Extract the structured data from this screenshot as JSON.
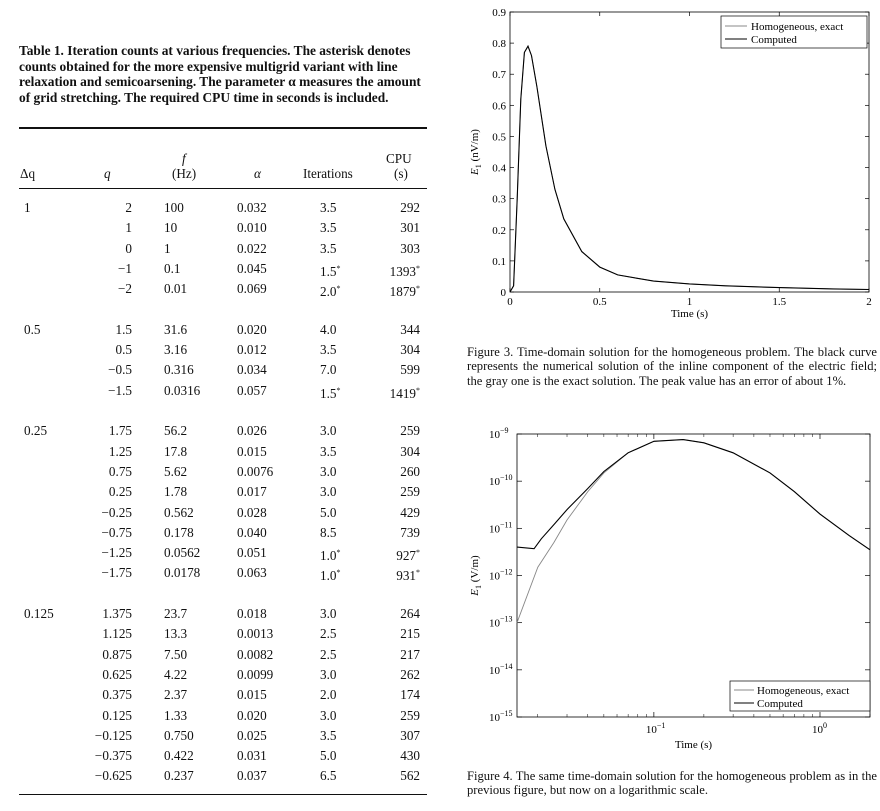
{
  "table": {
    "caption": "Table 1. Iteration counts at various frequencies. The asterisk denotes counts obtained for the more expensive multigrid variant with line relaxation and semicoarsening. The parameter α measures the amount of grid stretching. The required CPU time in seconds is included.",
    "headers": {
      "dq": "Δq",
      "q": "q",
      "f_top": "f",
      "f_unit": "(Hz)",
      "alpha": "α",
      "iterations": "Iterations",
      "cpu_top": "CPU",
      "cpu_unit": "(s)"
    },
    "groups": [
      {
        "dq": "1",
        "rows": [
          {
            "q": "2",
            "f": "100",
            "alpha": "0.032",
            "it": "3.5",
            "star": "",
            "cpu": "292",
            "cstar": ""
          },
          {
            "q": "1",
            "f": "10",
            "alpha": "0.010",
            "it": "3.5",
            "star": "",
            "cpu": "301",
            "cstar": ""
          },
          {
            "q": "0",
            "f": "1",
            "alpha": "0.022",
            "it": "3.5",
            "star": "",
            "cpu": "303",
            "cstar": ""
          },
          {
            "q": "−1",
            "f": "0.1",
            "alpha": "0.045",
            "it": "1.5",
            "star": "*",
            "cpu": "1393",
            "cstar": "*"
          },
          {
            "q": "−2",
            "f": "0.01",
            "alpha": "0.069",
            "it": "2.0",
            "star": "*",
            "cpu": "1879",
            "cstar": "*"
          }
        ]
      },
      {
        "dq": "0.5",
        "rows": [
          {
            "q": "1.5",
            "f": "31.6",
            "alpha": "0.020",
            "it": "4.0",
            "star": "",
            "cpu": "344",
            "cstar": ""
          },
          {
            "q": "0.5",
            "f": "3.16",
            "alpha": "0.012",
            "it": "3.5",
            "star": "",
            "cpu": "304",
            "cstar": ""
          },
          {
            "q": "−0.5",
            "f": "0.316",
            "alpha": "0.034",
            "it": "7.0",
            "star": "",
            "cpu": "599",
            "cstar": ""
          },
          {
            "q": "−1.5",
            "f": "0.0316",
            "alpha": "0.057",
            "it": "1.5",
            "star": "*",
            "cpu": "1419",
            "cstar": "*"
          }
        ]
      },
      {
        "dq": "0.25",
        "rows": [
          {
            "q": "1.75",
            "f": "56.2",
            "alpha": "0.026",
            "it": "3.0",
            "star": "",
            "cpu": "259",
            "cstar": ""
          },
          {
            "q": "1.25",
            "f": "17.8",
            "alpha": "0.015",
            "it": "3.5",
            "star": "",
            "cpu": "304",
            "cstar": ""
          },
          {
            "q": "0.75",
            "f": "5.62",
            "alpha": "0.0076",
            "it": "3.0",
            "star": "",
            "cpu": "260",
            "cstar": ""
          },
          {
            "q": "0.25",
            "f": "1.78",
            "alpha": "0.017",
            "it": "3.0",
            "star": "",
            "cpu": "259",
            "cstar": ""
          },
          {
            "q": "−0.25",
            "f": "0.562",
            "alpha": "0.028",
            "it": "5.0",
            "star": "",
            "cpu": "429",
            "cstar": ""
          },
          {
            "q": "−0.75",
            "f": "0.178",
            "alpha": "0.040",
            "it": "8.5",
            "star": "",
            "cpu": "739",
            "cstar": ""
          },
          {
            "q": "−1.25",
            "f": "0.0562",
            "alpha": "0.051",
            "it": "1.0",
            "star": "*",
            "cpu": "927",
            "cstar": "*"
          },
          {
            "q": "−1.75",
            "f": "0.0178",
            "alpha": "0.063",
            "it": "1.0",
            "star": "*",
            "cpu": "931",
            "cstar": "*"
          }
        ]
      },
      {
        "dq": "0.125",
        "rows": [
          {
            "q": "1.375",
            "f": "23.7",
            "alpha": "0.018",
            "it": "3.0",
            "star": "",
            "cpu": "264",
            "cstar": ""
          },
          {
            "q": "1.125",
            "f": "13.3",
            "alpha": "0.0013",
            "it": "2.5",
            "star": "",
            "cpu": "215",
            "cstar": ""
          },
          {
            "q": "0.875",
            "f": "7.50",
            "alpha": "0.0082",
            "it": "2.5",
            "star": "",
            "cpu": "217",
            "cstar": ""
          },
          {
            "q": "0.625",
            "f": "4.22",
            "alpha": "0.0099",
            "it": "3.0",
            "star": "",
            "cpu": "262",
            "cstar": ""
          },
          {
            "q": "0.375",
            "f": "2.37",
            "alpha": "0.015",
            "it": "2.0",
            "star": "",
            "cpu": "174",
            "cstar": ""
          },
          {
            "q": "0.125",
            "f": "1.33",
            "alpha": "0.020",
            "it": "3.0",
            "star": "",
            "cpu": "259",
            "cstar": ""
          },
          {
            "q": "−0.125",
            "f": "0.750",
            "alpha": "0.025",
            "it": "3.5",
            "star": "",
            "cpu": "307",
            "cstar": ""
          },
          {
            "q": "−0.375",
            "f": "0.422",
            "alpha": "0.031",
            "it": "5.0",
            "star": "",
            "cpu": "430",
            "cstar": ""
          },
          {
            "q": "−0.625",
            "f": "0.237",
            "alpha": "0.037",
            "it": "6.5",
            "star": "",
            "cpu": "562",
            "cstar": ""
          }
        ]
      }
    ]
  },
  "figure3": {
    "caption": "Figure 3. Time-domain solution for the homogeneous problem. The black curve represents the numerical solution of the inline component of the electric field; the gray one is the exact solution. The peak value has an error of about 1%."
  },
  "figure4": {
    "caption": "Figure 4. The same time-domain solution for the homogeneous problem as in the previous figure, but now on a logarithmic scale."
  },
  "chart_data": [
    {
      "type": "line",
      "xlabel": "Time (s)",
      "ylabel": "E1 (nV/m)",
      "ylabel_main": "E",
      "ylabel_sub": "1",
      "ylabel_unit": " (nV/m)",
      "xlim": [
        0,
        2
      ],
      "ylim": [
        0,
        0.9
      ],
      "xticks": [
        0,
        0.5,
        1,
        1.5,
        2
      ],
      "xtick_labels": [
        "0",
        "0.5",
        "1",
        "1.5",
        "2"
      ],
      "yticks": [
        0,
        0.1,
        0.2,
        0.3,
        0.4,
        0.5,
        0.6,
        0.7,
        0.8,
        0.9
      ],
      "ytick_labels": [
        "0",
        "0.1",
        "0.2",
        "0.3",
        "0.4",
        "0.5",
        "0.6",
        "0.7",
        "0.8",
        "0.9"
      ],
      "grid": false,
      "legend_position": "top-right",
      "series": [
        {
          "name": "Homogeneous, exact",
          "color": "#888888",
          "x": [
            0,
            0.02,
            0.04,
            0.06,
            0.08,
            0.1,
            0.12,
            0.15,
            0.2,
            0.25,
            0.3,
            0.4,
            0.5,
            0.6,
            0.8,
            1.0,
            1.2,
            1.5,
            1.8,
            2.0
          ],
          "y": [
            0,
            0.02,
            0.3,
            0.62,
            0.77,
            0.79,
            0.76,
            0.66,
            0.47,
            0.33,
            0.235,
            0.13,
            0.08,
            0.055,
            0.035,
            0.026,
            0.02,
            0.014,
            0.01,
            0.008
          ]
        },
        {
          "name": "Computed",
          "color": "#000000",
          "x": [
            0,
            0.02,
            0.04,
            0.06,
            0.08,
            0.1,
            0.12,
            0.15,
            0.2,
            0.25,
            0.3,
            0.4,
            0.5,
            0.6,
            0.8,
            1.0,
            1.2,
            1.5,
            1.8,
            2.0
          ],
          "y": [
            0,
            0.02,
            0.3,
            0.62,
            0.77,
            0.79,
            0.76,
            0.66,
            0.47,
            0.33,
            0.235,
            0.13,
            0.08,
            0.055,
            0.035,
            0.026,
            0.02,
            0.014,
            0.01,
            0.008
          ]
        }
      ]
    },
    {
      "type": "line",
      "xlabel": "Time (s)",
      "ylabel": "E1 (V/m)",
      "ylabel_main": "E",
      "ylabel_sub": "1",
      "ylabel_unit": " (V/m)",
      "xscale": "log",
      "yscale": "log",
      "xlim": [
        0.015,
        2
      ],
      "ylim": [
        1e-15,
        1e-09
      ],
      "xticks": [
        0.1,
        1
      ],
      "xtick_base": [
        "10",
        "10"
      ],
      "xtick_exp": [
        "−1",
        "0"
      ],
      "yticks": [
        1e-15,
        1e-14,
        1e-13,
        1e-12,
        1e-11,
        1e-10,
        1e-09
      ],
      "ytick_base": [
        "10",
        "10",
        "10",
        "10",
        "10",
        "10",
        "10"
      ],
      "ytick_exp": [
        "−15",
        "−14",
        "−13",
        "−12",
        "−11",
        "−10",
        "−9"
      ],
      "grid": false,
      "legend_position": "bottom-right",
      "series": [
        {
          "name": "Homogeneous, exact",
          "color": "#888888",
          "x": [
            0.015,
            0.02,
            0.025,
            0.03,
            0.04,
            0.05,
            0.07,
            0.1,
            0.15,
            0.2,
            0.3,
            0.5,
            0.7,
            1.0,
            1.5,
            2.0
          ],
          "y": [
            1e-13,
            1.5e-12,
            5e-12,
            1.5e-11,
            6e-11,
            1.5e-10,
            4e-10,
            7e-10,
            7.6e-10,
            6.5e-10,
            4e-10,
            1.5e-10,
            6e-11,
            2e-11,
            7e-12,
            3.5e-12
          ]
        },
        {
          "name": "Computed",
          "color": "#000000",
          "x": [
            0.015,
            0.019,
            0.021,
            0.025,
            0.03,
            0.04,
            0.05,
            0.07,
            0.1,
            0.15,
            0.2,
            0.3,
            0.5,
            0.7,
            1.0,
            1.5,
            2.0
          ],
          "y": [
            4e-12,
            3.7e-12,
            6e-12,
            1.2e-11,
            2.5e-11,
            7e-11,
            1.6e-10,
            4e-10,
            7e-10,
            7.6e-10,
            6.5e-10,
            4e-10,
            1.5e-10,
            6e-11,
            2e-11,
            7e-12,
            3.5e-12
          ]
        }
      ]
    }
  ]
}
